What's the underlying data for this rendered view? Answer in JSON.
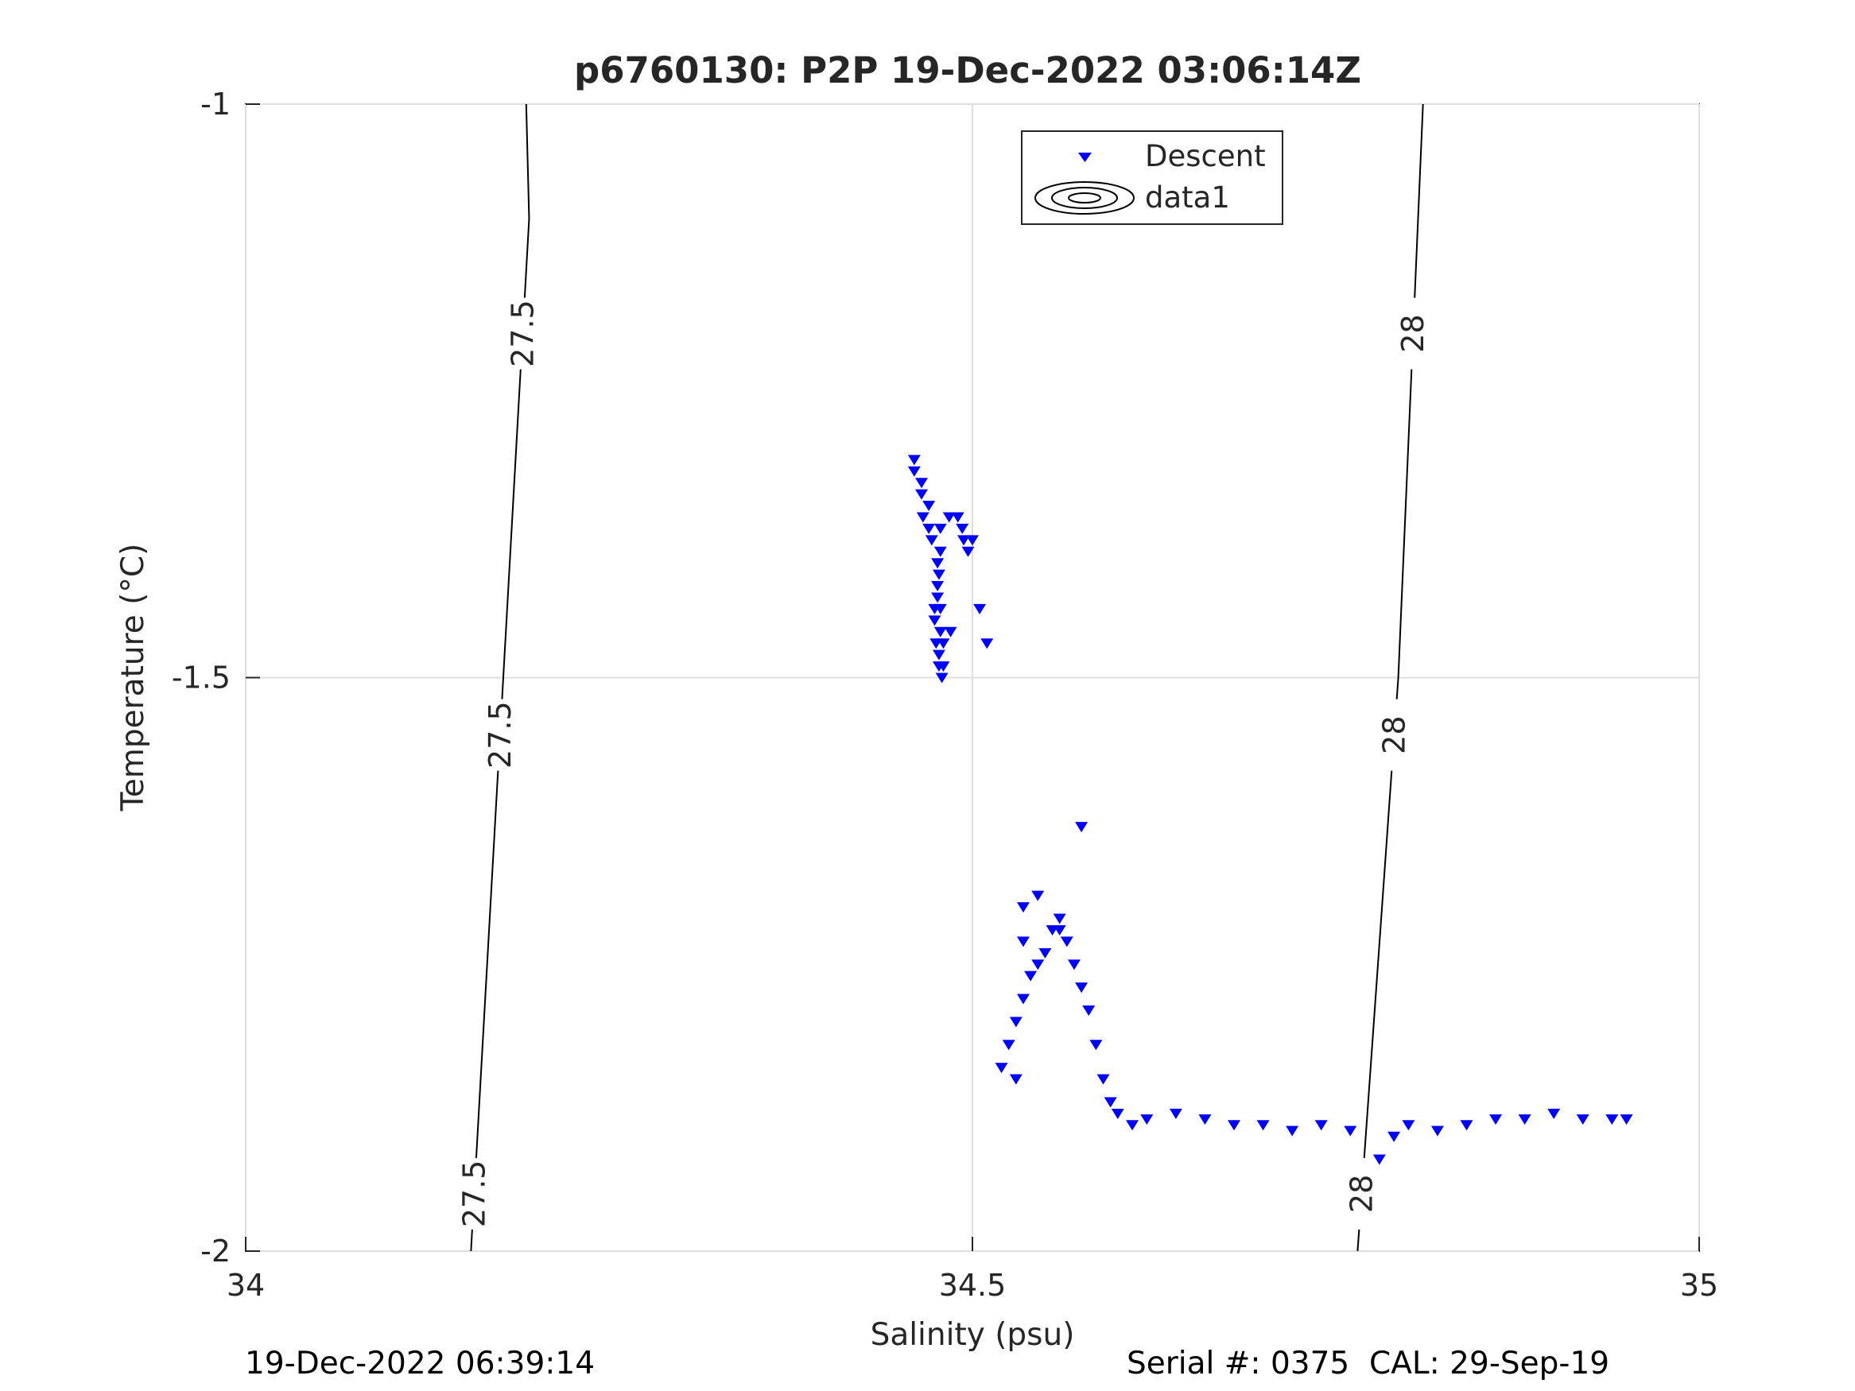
{
  "chart_data": {
    "type": "scatter",
    "title": "p6760130: P2P 19-Dec-2022 03:06:14Z",
    "xlabel": "Salinity (psu)",
    "ylabel": "Temperature (°C)",
    "xlim": [
      34,
      35
    ],
    "ylim": [
      -2,
      -1
    ],
    "xticks": [
      "34",
      "34.5",
      "35"
    ],
    "yticks": [
      "-1",
      "-1.5",
      "-2"
    ],
    "grid": true,
    "legend_position": "top-center",
    "legend": [
      "Descent",
      "data1"
    ],
    "series": [
      {
        "name": "Descent",
        "color": "#0000ff",
        "marker": "triangle-down",
        "points": [
          [
            34.46,
            -1.31
          ],
          [
            34.46,
            -1.32
          ],
          [
            34.465,
            -1.33
          ],
          [
            34.465,
            -1.34
          ],
          [
            34.47,
            -1.35
          ],
          [
            34.466,
            -1.36
          ],
          [
            34.47,
            -1.37
          ],
          [
            34.472,
            -1.38
          ],
          [
            34.478,
            -1.37
          ],
          [
            34.484,
            -1.36
          ],
          [
            34.49,
            -1.36
          ],
          [
            34.493,
            -1.37
          ],
          [
            34.494,
            -1.38
          ],
          [
            34.497,
            -1.39
          ],
          [
            34.478,
            -1.39
          ],
          [
            34.476,
            -1.4
          ],
          [
            34.477,
            -1.41
          ],
          [
            34.476,
            -1.42
          ],
          [
            34.476,
            -1.43
          ],
          [
            34.474,
            -1.44
          ],
          [
            34.478,
            -1.44
          ],
          [
            34.474,
            -1.45
          ],
          [
            34.478,
            -1.46
          ],
          [
            34.475,
            -1.47
          ],
          [
            34.48,
            -1.47
          ],
          [
            34.477,
            -1.48
          ],
          [
            34.48,
            -1.49
          ],
          [
            34.477,
            -1.49
          ],
          [
            34.479,
            -1.5
          ],
          [
            34.485,
            -1.46
          ],
          [
            34.5,
            -1.38
          ],
          [
            34.505,
            -1.44
          ],
          [
            34.51,
            -1.47
          ],
          [
            34.575,
            -1.63
          ],
          [
            34.52,
            -1.84
          ],
          [
            34.53,
            -1.85
          ],
          [
            34.525,
            -1.82
          ],
          [
            34.53,
            -1.8
          ],
          [
            34.535,
            -1.78
          ],
          [
            34.54,
            -1.76
          ],
          [
            34.545,
            -1.75
          ],
          [
            34.55,
            -1.74
          ],
          [
            34.555,
            -1.72
          ],
          [
            34.56,
            -1.71
          ],
          [
            34.565,
            -1.73
          ],
          [
            34.57,
            -1.75
          ],
          [
            34.575,
            -1.77
          ],
          [
            34.58,
            -1.79
          ],
          [
            34.585,
            -1.82
          ],
          [
            34.59,
            -1.85
          ],
          [
            34.595,
            -1.87
          ],
          [
            34.6,
            -1.88
          ],
          [
            34.61,
            -1.89
          ],
          [
            34.62,
            -1.885
          ],
          [
            34.64,
            -1.88
          ],
          [
            34.66,
            -1.885
          ],
          [
            34.68,
            -1.89
          ],
          [
            34.7,
            -1.89
          ],
          [
            34.72,
            -1.895
          ],
          [
            34.74,
            -1.89
          ],
          [
            34.76,
            -1.895
          ],
          [
            34.78,
            -1.92
          ],
          [
            34.79,
            -1.9
          ],
          [
            34.8,
            -1.89
          ],
          [
            34.82,
            -1.895
          ],
          [
            34.84,
            -1.89
          ],
          [
            34.86,
            -1.885
          ],
          [
            34.88,
            -1.885
          ],
          [
            34.9,
            -1.88
          ],
          [
            34.92,
            -1.885
          ],
          [
            34.94,
            -1.885
          ],
          [
            34.95,
            -1.885
          ],
          [
            34.535,
            -1.7
          ],
          [
            34.545,
            -1.69
          ],
          [
            34.56,
            -1.72
          ],
          [
            34.535,
            -1.73
          ]
        ]
      }
    ],
    "isopycnals": [
      {
        "label": "27.5",
        "points": [
          [
            34.155,
            -2
          ],
          [
            34.195,
            -1.1
          ],
          [
            34.193,
            -1
          ]
        ]
      },
      {
        "label": "28",
        "points": [
          [
            34.765,
            -2
          ],
          [
            34.793,
            -1.5
          ],
          [
            34.81,
            -1
          ]
        ]
      }
    ]
  },
  "footer": {
    "timestamp": "19-Dec-2022 06:39:14",
    "serial": "Serial #: 0375  CAL: 29-Sep-19"
  }
}
